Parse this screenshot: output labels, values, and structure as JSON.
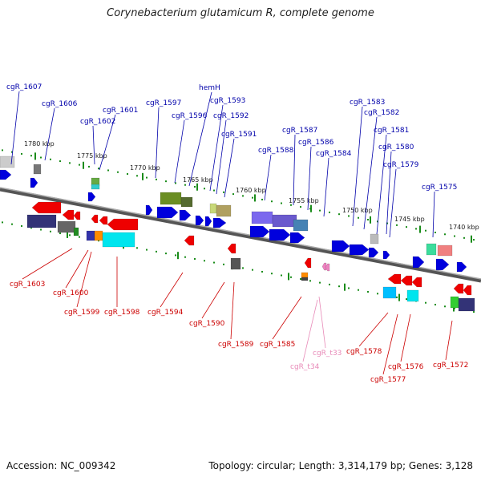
{
  "title": "Corynebacterium glutamicum R, complete genome",
  "footer": {
    "accession": "Accession: NC_009342",
    "summary": "Topology: circular; Length: 3,314,179 bp; Genes: 3,128"
  },
  "colors": {
    "forward_label": "#0000aa",
    "reverse_label": "#cc0000",
    "trna_label": "#e88ab8",
    "forward_arrow": "#0000dd",
    "reverse_arrow": "#ee0000",
    "ruler_dots": "#1a8c1a",
    "backbone": "#777777"
  },
  "ruler_ticks": [
    "1780 kbp",
    "1775 kbp",
    "1770 kbp",
    "1765 kbp",
    "1760 kbp",
    "1755 kbp",
    "1750 kbp",
    "1745 kbp",
    "1740 kbp"
  ],
  "forward_genes": [
    "cgR_1607",
    "cgR_1606",
    "cgR_1602",
    "cgR_1601",
    "cgR_1597",
    "cgR_1596",
    "hemH",
    "cgR_1593",
    "cgR_1592",
    "cgR_1591",
    "cgR_1588",
    "cgR_1587",
    "cgR_1586",
    "cgR_1584",
    "cgR_1583",
    "cgR_1582",
    "cgR_1581",
    "cgR_1580",
    "cgR_1579",
    "cgR_1575"
  ],
  "reverse_genes": [
    "cgR_1603",
    "cgR_1600",
    "cgR_1599",
    "cgR_1598",
    "cgR_1594",
    "cgR_1590",
    "cgR_1589",
    "cgR_1585",
    "cgR_t33",
    "cgR_t34",
    "cgR_1578",
    "cgR_1577",
    "cgR_1576",
    "cgR_1572"
  ]
}
